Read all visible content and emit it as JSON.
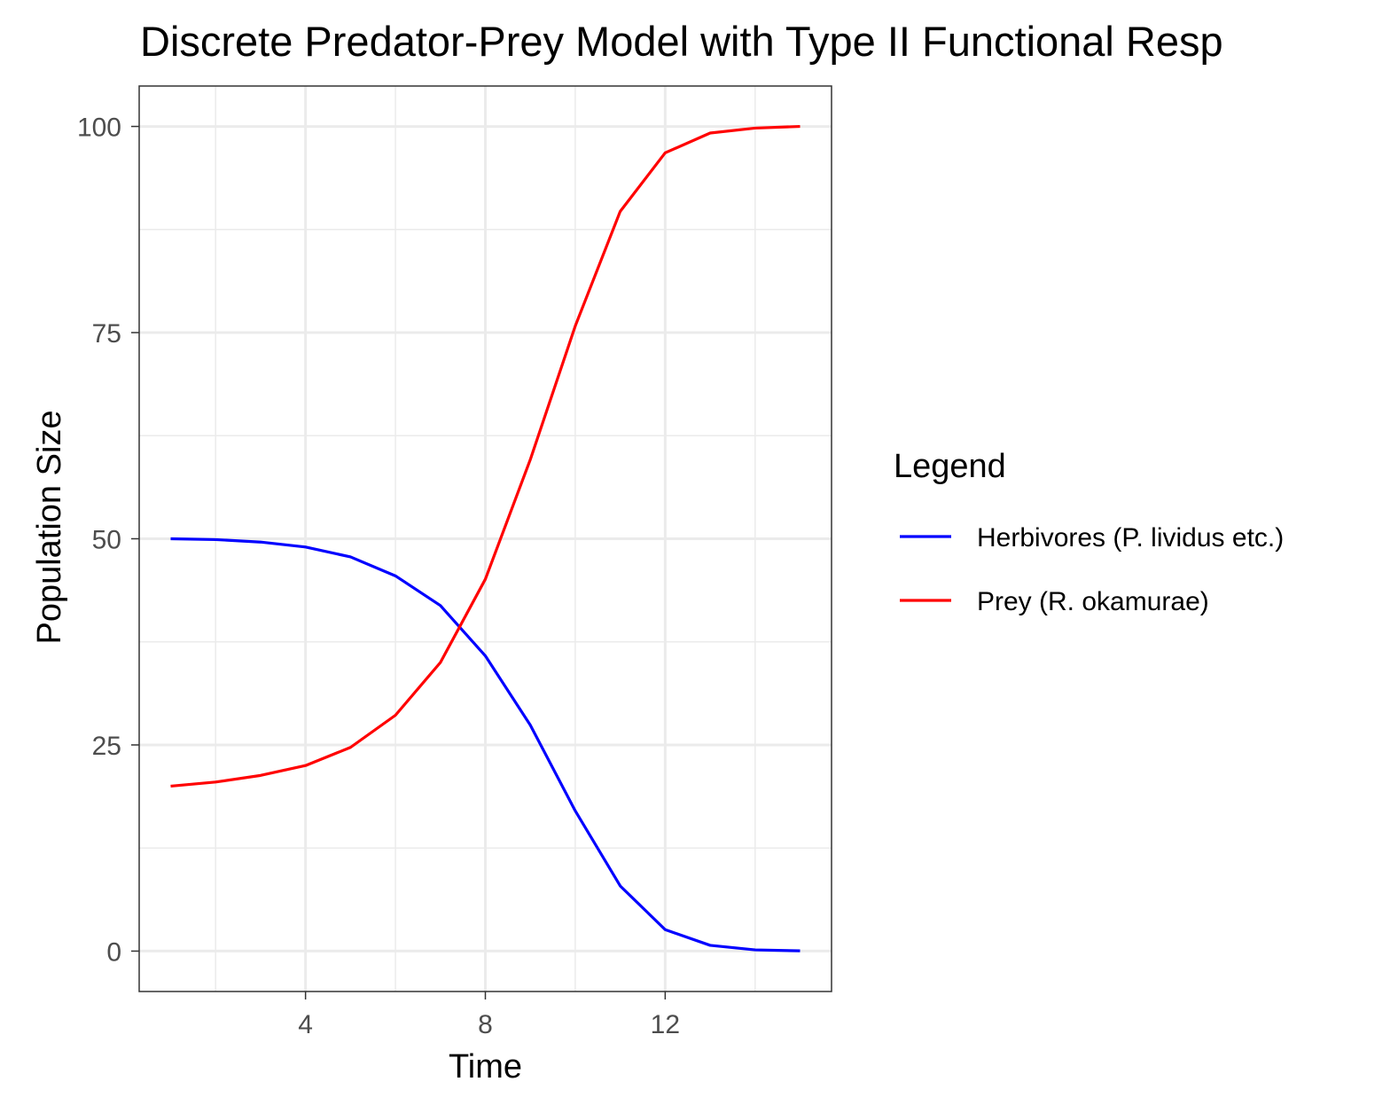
{
  "chart_data": {
    "type": "line",
    "title": "Discrete Predator-Prey Model with Type II Functional Resp",
    "xlabel": "Time",
    "ylabel": "Population Size",
    "xlim": [
      0.3,
      15.7
    ],
    "ylim": [
      -4.9,
      104.9
    ],
    "xticks": [
      4,
      8,
      12
    ],
    "yticks": [
      0,
      25,
      50,
      75,
      100
    ],
    "xtick_labels": [
      "4",
      "8",
      "12"
    ],
    "ytick_labels": [
      "0",
      "25",
      "50",
      "75",
      "100"
    ],
    "grid": true,
    "legend_position": "right",
    "legend_title": "Legend",
    "x": [
      1,
      2,
      3,
      4,
      5,
      6,
      7,
      8,
      9,
      10,
      11,
      12,
      13,
      14,
      15
    ],
    "series": [
      {
        "name": "Herbivores (P. lividus etc.)",
        "color": "#0000ff",
        "values": [
          50.0,
          49.9,
          49.6,
          49.0,
          47.8,
          45.5,
          41.9,
          35.8,
          27.4,
          17.0,
          7.9,
          2.6,
          0.7,
          0.15,
          0.03
        ]
      },
      {
        "name": "Prey (R. okamurae)",
        "color": "#ff0000",
        "values": [
          20.0,
          20.5,
          21.3,
          22.5,
          24.7,
          28.6,
          35.0,
          45.1,
          59.6,
          75.8,
          89.7,
          96.8,
          99.2,
          99.8,
          100.0
        ]
      }
    ]
  }
}
